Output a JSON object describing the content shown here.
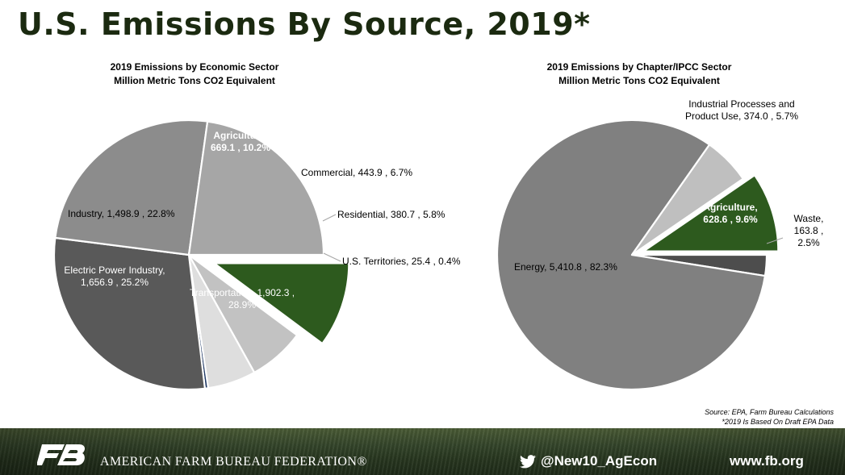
{
  "title": "U.S. Emissions By Source, 2019*",
  "chart_data": [
    {
      "type": "pie",
      "title": [
        "2019 Emissions by Economic Sector",
        "Million Metric Tons CO2 Equivalent"
      ],
      "slices": [
        {
          "name": "Agriculture",
          "value": 669.1,
          "percent": "10.2%",
          "color": "#2d5a1e",
          "exploded": true
        },
        {
          "name": "Commercial",
          "value": 443.9,
          "percent": "6.7%",
          "color": "#c2c2c2"
        },
        {
          "name": "Residential",
          "value": 380.7,
          "percent": "5.8%",
          "color": "#dedede"
        },
        {
          "name": "U.S. Territories",
          "value": 25.4,
          "percent": "0.4%",
          "color": "#1f3864"
        },
        {
          "name": "Transportation",
          "value": 1902.3,
          "percent": "28.9%",
          "color": "#595959"
        },
        {
          "name": "Electric Power Industry",
          "value": 1656.9,
          "percent": "25.2%",
          "color": "#8c8c8c"
        },
        {
          "name": "Industry",
          "value": 1498.9,
          "percent": "22.8%",
          "color": "#a6a6a6"
        }
      ],
      "labels": [
        {
          "lines": [
            "Agriculture,",
            "669.1 , 10.2%"
          ]
        },
        {
          "lines": [
            "Commercial,  443.9 , 6.7%"
          ]
        },
        {
          "lines": [
            "Residential,  380.7 , 5.8%"
          ]
        },
        {
          "lines": [
            "U.S. Territories,  25.4 , 0.4%"
          ]
        },
        {
          "lines": [
            "Transportation,  1,902.3 ,",
            "28.9%"
          ]
        },
        {
          "lines": [
            "Electric Power Industry,",
            "1,656.9 , 25.2%"
          ]
        },
        {
          "lines": [
            "Industry,  1,498.9 , 22.8%"
          ]
        }
      ]
    },
    {
      "type": "pie",
      "title": [
        "2019 Emissions by Chapter/IPCC Sector",
        "Million Metric Tons CO2 Equivalent"
      ],
      "slices": [
        {
          "name": "Waste",
          "value": 163.8,
          "percent": "2.5%",
          "color": "#4d4d4d"
        },
        {
          "name": "Energy",
          "value": 5410.8,
          "percent": "82.3%",
          "color": "#808080"
        },
        {
          "name": "Industrial Processes and Product Use",
          "value": 374.0,
          "percent": "5.7%",
          "color": "#bfbfbf"
        },
        {
          "name": "Agriculture",
          "value": 628.6,
          "percent": "9.6%",
          "color": "#2d5a1e",
          "exploded": true
        }
      ],
      "labels": [
        {
          "lines": [
            "Waste,",
            "163.8 ,",
            "2.5%"
          ]
        },
        {
          "lines": [
            "Energy,  5,410.8 , 82.3%"
          ]
        },
        {
          "lines": [
            "Industrial Processes and",
            "Product Use,  374.0 , 5.7%"
          ]
        },
        {
          "lines": [
            "Agriculture,",
            "628.6 , 9.6%"
          ]
        }
      ]
    }
  ],
  "source": [
    "Source: EPA, Farm Bureau Calculations",
    "*2019 Is Based On Draft EPA Data"
  ],
  "footer": {
    "logo": "fb-logo",
    "org": "AMERICAN FARM BUREAU FEDERATION®",
    "twitter_icon": "twitter-bird-icon",
    "twitter": "@New10_AgEcon",
    "website": "www.fb.org"
  }
}
